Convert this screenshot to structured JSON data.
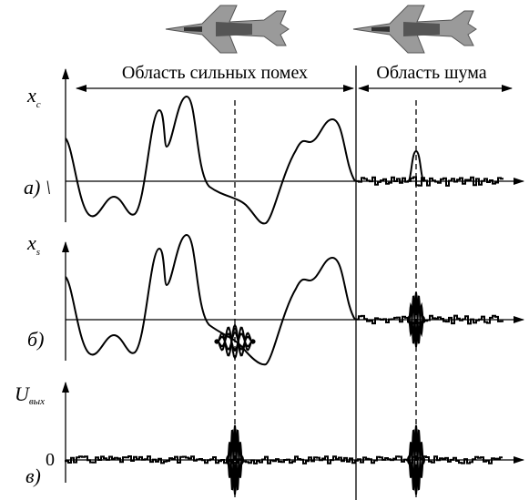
{
  "regions": [
    {
      "label": "Область сильных помех"
    },
    {
      "label": "Область шума"
    }
  ],
  "panels": [
    {
      "label": "а) \\",
      "axis_symbol": "x",
      "axis_subscript": "c"
    },
    {
      "label": "б)",
      "axis_symbol": "x",
      "axis_subscript": "s"
    },
    {
      "label": "в)",
      "axis_symbol": "U",
      "axis_subscript": "вых",
      "zero_label": "0"
    }
  ]
}
